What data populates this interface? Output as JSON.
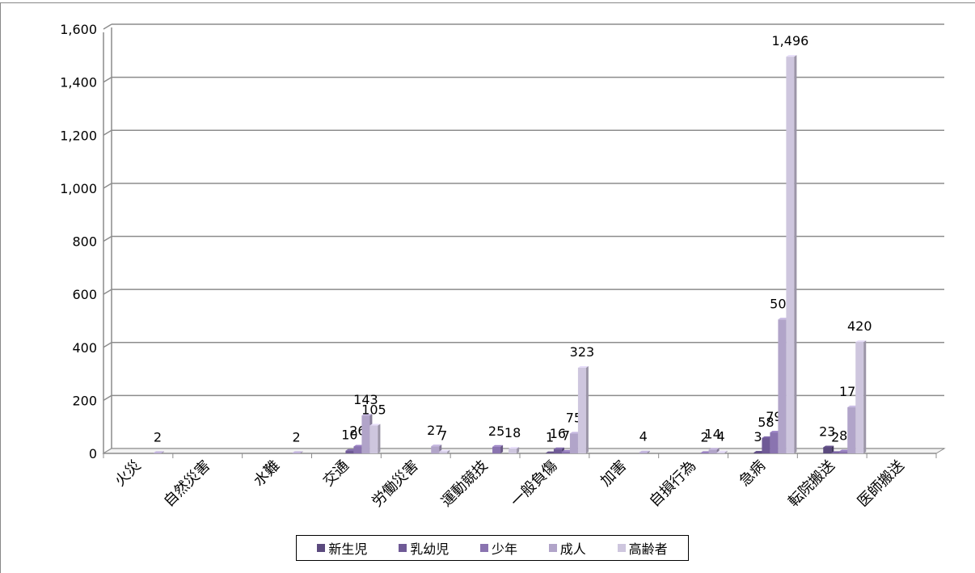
{
  "chart_data": {
    "type": "bar",
    "title": "",
    "xlabel": "",
    "ylabel": "",
    "ylim": [
      0,
      1600
    ],
    "yticks": [
      0,
      200,
      400,
      600,
      800,
      1000,
      1200,
      1400,
      1600
    ],
    "ytick_labels": [
      "0",
      "200",
      "400",
      "600",
      "800",
      "1,000",
      "1,200",
      "1,400",
      "1,600"
    ],
    "grid": true,
    "legend_position": "bottom",
    "categories": [
      "火災",
      "自然災害",
      "水難",
      "交通",
      "労働災害",
      "運動競技",
      "一般負傷",
      "加害",
      "自損行為",
      "急病",
      "転院搬送",
      "医師搬送"
    ],
    "series": [
      {
        "name": "新生児",
        "color": "#5b4a7e",
        "values": [
          0,
          0,
          0,
          0,
          0,
          0,
          1,
          0,
          0,
          3,
          23,
          0
        ],
        "labels": [
          "",
          "",
          "",
          "",
          "",
          "",
          "1",
          "",
          "",
          "3",
          "23",
          ""
        ]
      },
      {
        "name": "乳幼児",
        "color": "#6f5a96",
        "values": [
          0,
          0,
          0,
          10,
          0,
          0,
          16,
          0,
          0,
          58,
          2,
          0
        ],
        "labels": [
          "",
          "",
          "",
          "10",
          "",
          "",
          "16",
          "",
          "",
          "58",
          "2",
          ""
        ]
      },
      {
        "name": "少年",
        "color": "#8a74b0",
        "values": [
          0,
          0,
          0,
          26,
          0,
          25,
          7,
          0,
          2,
          79,
          8,
          0
        ],
        "labels": [
          "",
          "",
          "",
          "26",
          "",
          "25",
          "7",
          "",
          "2",
          "79",
          "8",
          ""
        ]
      },
      {
        "name": "成人",
        "color": "#b1a4c9",
        "values": [
          2,
          0,
          2,
          143,
          27,
          0,
          75,
          4,
          14,
          505,
          174,
          0
        ],
        "labels": [
          "2",
          "",
          "2",
          "143",
          "27",
          "",
          "75",
          "4",
          "14",
          "505",
          "174",
          ""
        ]
      },
      {
        "name": "高齢者",
        "color": "#cec6de",
        "values": [
          0,
          0,
          0,
          105,
          7,
          18,
          323,
          0,
          4,
          1496,
          420,
          0
        ],
        "labels": [
          "",
          "",
          "",
          "105",
          "7",
          "18",
          "323",
          "",
          "4",
          "1,496",
          "420",
          ""
        ]
      }
    ]
  }
}
